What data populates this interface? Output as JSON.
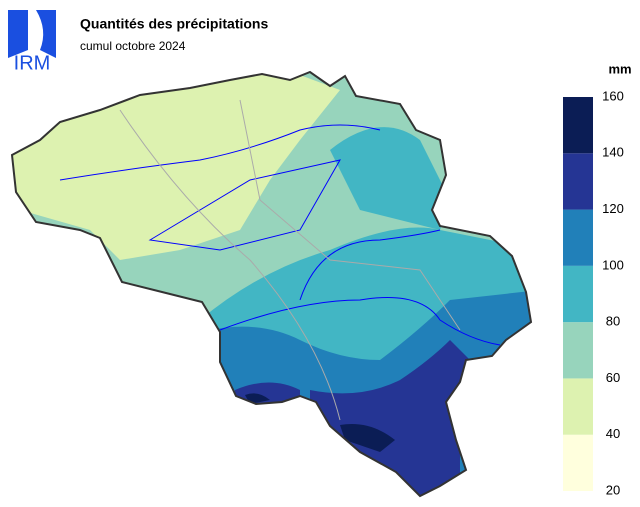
{
  "header": {
    "title": "Quantités des précipitations",
    "subtitle": "cumul octobre 2024"
  },
  "logo": {
    "text": "IRM"
  },
  "legend": {
    "unit": "mm",
    "ticks": [
      20,
      40,
      60,
      80,
      100,
      120,
      140,
      160
    ],
    "colors": [
      "#ffffdd",
      "#ddf2b0",
      "#97d4bc",
      "#42b6c4",
      "#2180b9",
      "#253594",
      "#0b1d55"
    ]
  }
}
